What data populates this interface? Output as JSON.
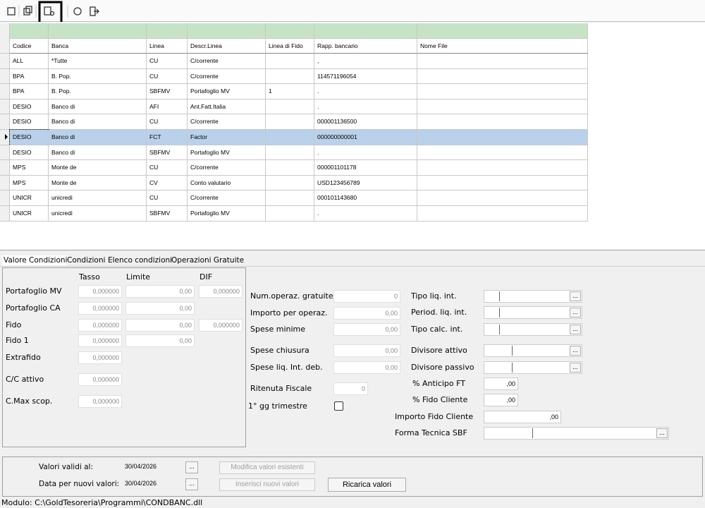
{
  "table": {
    "headers": [
      "Codice",
      "Banca",
      "Linea",
      "Descr.Linea",
      "Linea di Fido",
      "Rapp. bancario",
      "Nome File"
    ],
    "rows": [
      [
        "ALL",
        "*Tutte",
        "CU",
        "C/corrente",
        null,
        ",",
        null
      ],
      [
        "BPA",
        "B. Pop.",
        "CU",
        "C/corrente",
        null,
        "114571196054",
        null
      ],
      [
        "BPA",
        "B. Pop.",
        "SBFMV",
        "Portafoglio MV",
        "1",
        ".",
        null
      ],
      [
        "DESIO",
        "Banco di",
        "AFI",
        "Ant.Fatt.Italia",
        null,
        ".",
        null
      ],
      [
        "DESIO",
        "Banco di",
        "CU",
        "C/corrente",
        null,
        "000001136500",
        null
      ],
      [
        "DESIO",
        "Banco di",
        "FCT",
        "Factor",
        null,
        "000000000001",
        null
      ],
      [
        "DESIO",
        "Banco di",
        "SBFMV",
        "Portafoglio MV",
        null,
        ".",
        null
      ],
      [
        "MPS",
        "Monte de",
        "CU",
        "C/corrente",
        null,
        "000001101178",
        null
      ],
      [
        "MPS",
        "Monte de",
        "CV",
        "Conto valutario",
        null,
        "USD123456789",
        null
      ],
      [
        "UNICR",
        "unicredi",
        "CU",
        "C/corrente",
        null,
        "000101143680",
        null
      ],
      [
        "UNICR",
        "unicredi",
        "SBFMV",
        "Portafoglio MV",
        null,
        ".",
        null
      ]
    ],
    "selected_row": 5
  },
  "tabs": [
    "Valore Condizioni",
    "Condizioni",
    "Elenco condizioni",
    "Operazioni Gratuite"
  ],
  "rates": {
    "headers": [
      "Tasso",
      "Limite",
      "DIF"
    ],
    "rows": [
      {
        "label": "Portafoglio MV",
        "values": [
          "0,000000",
          "0,00",
          "0,000000"
        ]
      },
      {
        "label": "Portafoglio CA",
        "values": [
          "0,000000",
          "0,00"
        ]
      },
      {
        "label": "Fido",
        "values": [
          "0,000000",
          "0,00",
          "0,000000"
        ]
      },
      {
        "label": "Fido 1",
        "values": [
          "0,000000",
          "0,00"
        ]
      },
      {
        "label": "Extrafido",
        "values": [
          "0,000000"
        ]
      },
      {
        "label": "C/C attivo",
        "values": [
          "0,000000"
        ]
      },
      {
        "label": "C.Max scop.",
        "values": [
          "0,000000"
        ]
      }
    ]
  },
  "operations": [
    {
      "label": "Num.operaz. gratuite",
      "value": "0"
    },
    {
      "label": "Importo per operaz.",
      "value": "0,00"
    },
    {
      "label": "Spese minime",
      "value": "0,00"
    },
    {
      "label": "Spese chiusura",
      "value": "0,00"
    },
    {
      "label": "Spese liq. Int. deb.",
      "value": "0,00"
    },
    {
      "label": "Ritenuta Fiscale",
      "value": "0"
    }
  ],
  "checkbox_label": "1° gg trimestre",
  "interest_combos": [
    "Tipo liq. int.",
    "Period. liq. int.",
    "Tipo calc. int.",
    "Divisore attivo",
    "Divisore passivo"
  ],
  "percent_fields": [
    {
      "label": "% Anticipo FT",
      "value": ",00"
    },
    {
      "label": "% Fido Cliente",
      "value": ",00"
    },
    {
      "label": "Importo Fido Cliente",
      "value": ",00"
    }
  ],
  "sbf_label": "Forma Tecnica SBF",
  "browse_button": "...",
  "dates": [
    {
      "label": "Valori validi al:",
      "value": "30/04/2026"
    },
    {
      "label": "Data per nuovi valori:",
      "value": "30/04/2026"
    }
  ],
  "buttons": [
    "Modifica valori esistenti",
    "Inserisci nuovi valori",
    "Ricarica valori"
  ],
  "status": "Modulo: C:\\GoldTesoreria\\Programmi\\CONDBANC.dll"
}
